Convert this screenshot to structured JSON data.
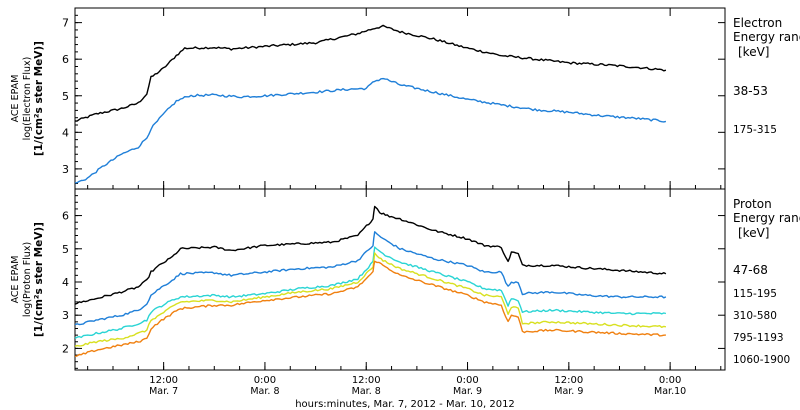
{
  "chart_data": {
    "type": "line",
    "xlabel": "hours:minutes, Mar. 7, 2012 - Mar. 10, 2012",
    "x_ticks": [
      {
        "hour": 12,
        "t1": "12:00",
        "t2": "Mar. 7"
      },
      {
        "hour": 24,
        "t1": "0:00",
        "t2": "Mar. 8"
      },
      {
        "hour": 36,
        "t1": "12:00",
        "t2": "Mar. 8"
      },
      {
        "hour": 48,
        "t1": "0:00",
        "t2": "Mar. 9"
      },
      {
        "hour": 60,
        "t1": "12:00",
        "t2": "Mar. 9"
      },
      {
        "hour": 72,
        "t1": "0:00",
        "t2": "Mar.10"
      }
    ],
    "xlim_hours": [
      1.5,
      78.5
    ],
    "panels": [
      {
        "id": "electron",
        "ylabel": [
          "ACE EPAM",
          "log(Electron Flux)",
          "[1/(cm²s ster MeV)]"
        ],
        "ylim": [
          2.45,
          7.4
        ],
        "yticks": [
          3,
          4,
          5,
          6,
          7
        ],
        "legend_title": [
          "Electron",
          "Energy ranges",
          "[keV]"
        ],
        "series": [
          {
            "name": "38-53",
            "color": "#000000",
            "points": [
              [
                1.5,
                4.3
              ],
              [
                4,
                4.5
              ],
              [
                7,
                4.65
              ],
              [
                9,
                4.8
              ],
              [
                10,
                5.05
              ],
              [
                10.5,
                5.5
              ],
              [
                12,
                5.75
              ],
              [
                13.5,
                6.1
              ],
              [
                14.5,
                6.3
              ],
              [
                18,
                6.32
              ],
              [
                20,
                6.28
              ],
              [
                24,
                6.35
              ],
              [
                30,
                6.45
              ],
              [
                33,
                6.6
              ],
              [
                35,
                6.7
              ],
              [
                37,
                6.85
              ],
              [
                38,
                6.9
              ],
              [
                40,
                6.75
              ],
              [
                44,
                6.55
              ],
              [
                48,
                6.3
              ],
              [
                52,
                6.1
              ],
              [
                56,
                6.0
              ],
              [
                60,
                5.9
              ],
              [
                64,
                5.85
              ],
              [
                68,
                5.78
              ],
              [
                71.5,
                5.7
              ]
            ]
          },
          {
            "name": "175-315",
            "color": "#1f7fd8",
            "points": [
              [
                1.5,
                2.6
              ],
              [
                3,
                2.75
              ],
              [
                5,
                3.1
              ],
              [
                7,
                3.4
              ],
              [
                9,
                3.6
              ],
              [
                10,
                3.85
              ],
              [
                10.5,
                4.1
              ],
              [
                12,
                4.5
              ],
              [
                13.5,
                4.85
              ],
              [
                15,
                5.0
              ],
              [
                18,
                5.02
              ],
              [
                21,
                4.97
              ],
              [
                24,
                5.0
              ],
              [
                30,
                5.1
              ],
              [
                34,
                5.18
              ],
              [
                36,
                5.2
              ],
              [
                37,
                5.4
              ],
              [
                38,
                5.48
              ],
              [
                40,
                5.3
              ],
              [
                44,
                5.1
              ],
              [
                48,
                4.9
              ],
              [
                52,
                4.75
              ],
              [
                56,
                4.62
              ],
              [
                60,
                4.55
              ],
              [
                64,
                4.45
              ],
              [
                68,
                4.38
              ],
              [
                71.5,
                4.3
              ]
            ]
          }
        ]
      },
      {
        "id": "proton",
        "ylabel": [
          "ACE EPAM",
          "log(Proton Flux)",
          "[1/(cm²s ster MeV)]"
        ],
        "ylim": [
          1.35,
          6.8
        ],
        "yticks": [
          2,
          3,
          4,
          5,
          6
        ],
        "legend_title": [
          "Proton",
          "Energy ranges",
          "[keV]"
        ],
        "series": [
          {
            "name": "47-68",
            "color": "#000000",
            "points": [
              [
                1.5,
                3.35
              ],
              [
                4,
                3.5
              ],
              [
                7,
                3.7
              ],
              [
                9,
                3.85
              ],
              [
                10,
                4.05
              ],
              [
                10.5,
                4.3
              ],
              [
                11.5,
                4.5
              ],
              [
                13,
                4.75
              ],
              [
                14,
                5.0
              ],
              [
                18,
                5.05
              ],
              [
                20,
                4.95
              ],
              [
                24,
                5.1
              ],
              [
                28,
                5.15
              ],
              [
                32,
                5.2
              ],
              [
                35,
                5.4
              ],
              [
                36.8,
                5.9
              ],
              [
                37,
                6.3
              ],
              [
                37.6,
                6.1
              ],
              [
                38.5,
                6.0
              ],
              [
                40,
                5.9
              ],
              [
                44,
                5.55
              ],
              [
                48,
                5.3
              ],
              [
                50,
                5.1
              ],
              [
                52,
                5.05
              ],
              [
                52.8,
                4.6
              ],
              [
                53.2,
                4.9
              ],
              [
                54,
                4.85
              ],
              [
                54.5,
                4.5
              ],
              [
                58,
                4.5
              ],
              [
                62,
                4.42
              ],
              [
                66,
                4.35
              ],
              [
                71.5,
                4.25
              ]
            ]
          },
          {
            "name": "115-195",
            "color": "#1f7fd8",
            "points": [
              [
                1.5,
                2.7
              ],
              [
                4,
                2.85
              ],
              [
                7,
                3.0
              ],
              [
                9,
                3.15
              ],
              [
                10,
                3.35
              ],
              [
                10.5,
                3.6
              ],
              [
                11.5,
                3.8
              ],
              [
                13,
                4.05
              ],
              [
                14,
                4.25
              ],
              [
                18,
                4.28
              ],
              [
                20,
                4.2
              ],
              [
                24,
                4.3
              ],
              [
                28,
                4.4
              ],
              [
                32,
                4.45
              ],
              [
                35,
                4.65
              ],
              [
                36.8,
                5.1
              ],
              [
                37,
                5.5
              ],
              [
                38,
                5.3
              ],
              [
                40,
                5.0
              ],
              [
                44,
                4.7
              ],
              [
                48,
                4.5
              ],
              [
                50,
                4.3
              ],
              [
                52,
                4.3
              ],
              [
                52.8,
                3.85
              ],
              [
                53.2,
                4.0
              ],
              [
                54,
                4.0
              ],
              [
                54.5,
                3.65
              ],
              [
                58,
                3.7
              ],
              [
                62,
                3.6
              ],
              [
                66,
                3.55
              ],
              [
                71.5,
                3.55
              ]
            ]
          },
          {
            "name": "310-580",
            "color": "#2ad4d4",
            "points": [
              [
                1.5,
                2.3
              ],
              [
                4,
                2.45
              ],
              [
                7,
                2.6
              ],
              [
                9,
                2.75
              ],
              [
                10,
                2.85
              ],
              [
                10.5,
                3.1
              ],
              [
                11.5,
                3.25
              ],
              [
                13,
                3.45
              ],
              [
                14,
                3.55
              ],
              [
                18,
                3.6
              ],
              [
                20,
                3.55
              ],
              [
                24,
                3.65
              ],
              [
                28,
                3.8
              ],
              [
                32,
                3.9
              ],
              [
                35,
                4.1
              ],
              [
                36.8,
                4.6
              ],
              [
                37,
                5.05
              ],
              [
                38,
                4.85
              ],
              [
                40,
                4.6
              ],
              [
                44,
                4.3
              ],
              [
                48,
                4.0
              ],
              [
                50,
                3.8
              ],
              [
                52,
                3.75
              ],
              [
                52.8,
                3.3
              ],
              [
                53.2,
                3.5
              ],
              [
                54,
                3.45
              ],
              [
                54.5,
                3.1
              ],
              [
                58,
                3.15
              ],
              [
                62,
                3.1
              ],
              [
                66,
                3.05
              ],
              [
                71.5,
                3.05
              ]
            ]
          },
          {
            "name": "795-1193",
            "color": "#d8e020",
            "points": [
              [
                1.5,
                2.05
              ],
              [
                4,
                2.2
              ],
              [
                7,
                2.3
              ],
              [
                9,
                2.45
              ],
              [
                10,
                2.55
              ],
              [
                10.5,
                2.85
              ],
              [
                11.5,
                3.0
              ],
              [
                13,
                3.25
              ],
              [
                14,
                3.4
              ],
              [
                18,
                3.45
              ],
              [
                20,
                3.4
              ],
              [
                24,
                3.55
              ],
              [
                28,
                3.7
              ],
              [
                32,
                3.8
              ],
              [
                35,
                4.0
              ],
              [
                36.8,
                4.45
              ],
              [
                37,
                4.85
              ],
              [
                38,
                4.65
              ],
              [
                40,
                4.4
              ],
              [
                44,
                4.1
              ],
              [
                48,
                3.8
              ],
              [
                50,
                3.6
              ],
              [
                52,
                3.55
              ],
              [
                52.8,
                3.05
              ],
              [
                53.2,
                3.25
              ],
              [
                54,
                3.2
              ],
              [
                54.5,
                2.75
              ],
              [
                58,
                2.8
              ],
              [
                62,
                2.75
              ],
              [
                66,
                2.7
              ],
              [
                71.5,
                2.65
              ]
            ]
          },
          {
            "name": "1060-1900",
            "color": "#f08010",
            "points": [
              [
                1.5,
                1.75
              ],
              [
                4,
                1.95
              ],
              [
                7,
                2.1
              ],
              [
                9,
                2.2
              ],
              [
                10,
                2.3
              ],
              [
                10.5,
                2.6
              ],
              [
                11.5,
                2.8
              ],
              [
                13,
                3.05
              ],
              [
                14,
                3.2
              ],
              [
                18,
                3.3
              ],
              [
                20,
                3.3
              ],
              [
                24,
                3.45
              ],
              [
                28,
                3.55
              ],
              [
                32,
                3.65
              ],
              [
                35,
                3.85
              ],
              [
                36.8,
                4.3
              ],
              [
                37,
                4.65
              ],
              [
                38,
                4.5
              ],
              [
                40,
                4.2
              ],
              [
                44,
                3.9
              ],
              [
                48,
                3.6
              ],
              [
                50,
                3.4
              ],
              [
                52,
                3.3
              ],
              [
                52.8,
                2.8
              ],
              [
                53.2,
                3.0
              ],
              [
                54,
                2.95
              ],
              [
                54.5,
                2.5
              ],
              [
                58,
                2.55
              ],
              [
                62,
                2.5
              ],
              [
                66,
                2.45
              ],
              [
                71.5,
                2.4
              ]
            ]
          }
        ]
      }
    ]
  }
}
